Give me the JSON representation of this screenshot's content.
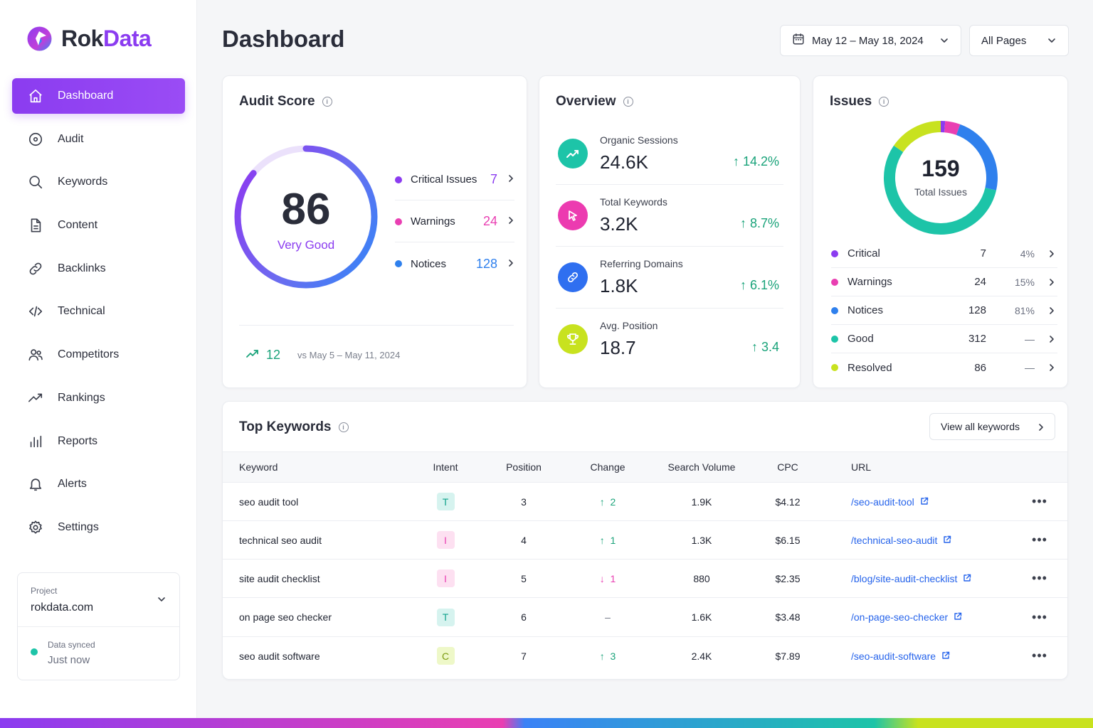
{
  "brand": {
    "name_part1": "Rok",
    "name_part2": "Data",
    "color_primary": "#8b3cf0"
  },
  "sidebar": {
    "items": [
      {
        "label": "Dashboard",
        "icon": "home-icon",
        "active": true
      },
      {
        "label": "Audit",
        "icon": "target-icon"
      },
      {
        "label": "Keywords",
        "icon": "search-icon"
      },
      {
        "label": "Content",
        "icon": "document-icon"
      },
      {
        "label": "Backlinks",
        "icon": "link-icon"
      },
      {
        "label": "Technical",
        "icon": "code-icon"
      },
      {
        "label": "Competitors",
        "icon": "users-icon"
      },
      {
        "label": "Rankings",
        "icon": "trend-icon"
      },
      {
        "label": "Reports",
        "icon": "bar-chart-icon"
      },
      {
        "label": "Alerts",
        "icon": "bell-icon"
      },
      {
        "label": "Settings",
        "icon": "gear-icon"
      }
    ],
    "project": {
      "label": "Project",
      "value": "rokdata.com"
    },
    "sync": {
      "label": "Data synced",
      "value": "Just now"
    }
  },
  "header": {
    "title": "Dashboard",
    "date_range": "May 12 – May 18, 2024",
    "pages_filter": "All Pages"
  },
  "audit": {
    "title": "Audit Score",
    "score": "86",
    "rating": "Very Good",
    "score_fraction": 0.86,
    "legend": [
      {
        "label": "Critical Issues",
        "value": "7",
        "color": "#8b3cf0"
      },
      {
        "label": "Warnings",
        "value": "24",
        "color": "#e93fb2"
      },
      {
        "label": "Notices",
        "value": "128",
        "color": "#2f80ed"
      }
    ],
    "change": "12",
    "compare": "vs  May 5 – May 11, 2024"
  },
  "overview": {
    "title": "Overview",
    "metrics": [
      {
        "label": "Organic Sessions",
        "value": "24.6K",
        "change": "14.2%",
        "icon": "trend-up-icon",
        "color": "#1dc4a8"
      },
      {
        "label": "Total Keywords",
        "value": "3.2K",
        "change": "8.7%",
        "icon": "cursor-icon",
        "color": "#ec3bb0"
      },
      {
        "label": "Referring Domains",
        "value": "1.8K",
        "change": "6.1%",
        "icon": "link-icon",
        "color": "#2f6ff0"
      },
      {
        "label": "Avg. Position",
        "value": "18.7",
        "change": "3.4",
        "icon": "trophy-icon",
        "color": "#c8e21f"
      }
    ]
  },
  "issues": {
    "title": "Issues",
    "total": "159",
    "total_label": "Total Issues",
    "rows": [
      {
        "label": "Critical",
        "count": "7",
        "pct": "4%",
        "color": "#8b3cf0"
      },
      {
        "label": "Warnings",
        "count": "24",
        "pct": "15%",
        "color": "#e93fb2"
      },
      {
        "label": "Notices",
        "count": "128",
        "pct": "81%",
        "color": "#2f80ed"
      },
      {
        "label": "Good",
        "count": "312",
        "pct": "—",
        "color": "#1dc4a8"
      },
      {
        "label": "Resolved",
        "count": "86",
        "pct": "—",
        "color": "#c8e21f"
      }
    ]
  },
  "keywords": {
    "title": "Top Keywords",
    "view_all": "View all keywords",
    "columns": [
      "Keyword",
      "Intent",
      "Position",
      "Change",
      "Search Volume",
      "CPC",
      "URL"
    ],
    "rows": [
      {
        "keyword": "seo audit tool",
        "intent": "T",
        "position": "3",
        "change": "2",
        "dir": "up",
        "volume": "1.9K",
        "cpc": "$4.12",
        "url": "/seo-audit-tool"
      },
      {
        "keyword": "technical seo audit",
        "intent": "I",
        "position": "4",
        "change": "1",
        "dir": "up",
        "volume": "1.3K",
        "cpc": "$6.15",
        "url": "/technical-seo-audit"
      },
      {
        "keyword": "site audit checklist",
        "intent": "I",
        "position": "5",
        "change": "1",
        "dir": "down",
        "volume": "880",
        "cpc": "$2.35",
        "url": "/blog/site-audit-checklist"
      },
      {
        "keyword": "on page seo checker",
        "intent": "T",
        "position": "6",
        "change": "–",
        "dir": "none",
        "volume": "1.6K",
        "cpc": "$3.48",
        "url": "/on-page-seo-checker"
      },
      {
        "keyword": "seo audit software",
        "intent": "C",
        "position": "7",
        "change": "3",
        "dir": "up",
        "volume": "2.4K",
        "cpc": "$7.89",
        "url": "/seo-audit-software"
      }
    ]
  }
}
